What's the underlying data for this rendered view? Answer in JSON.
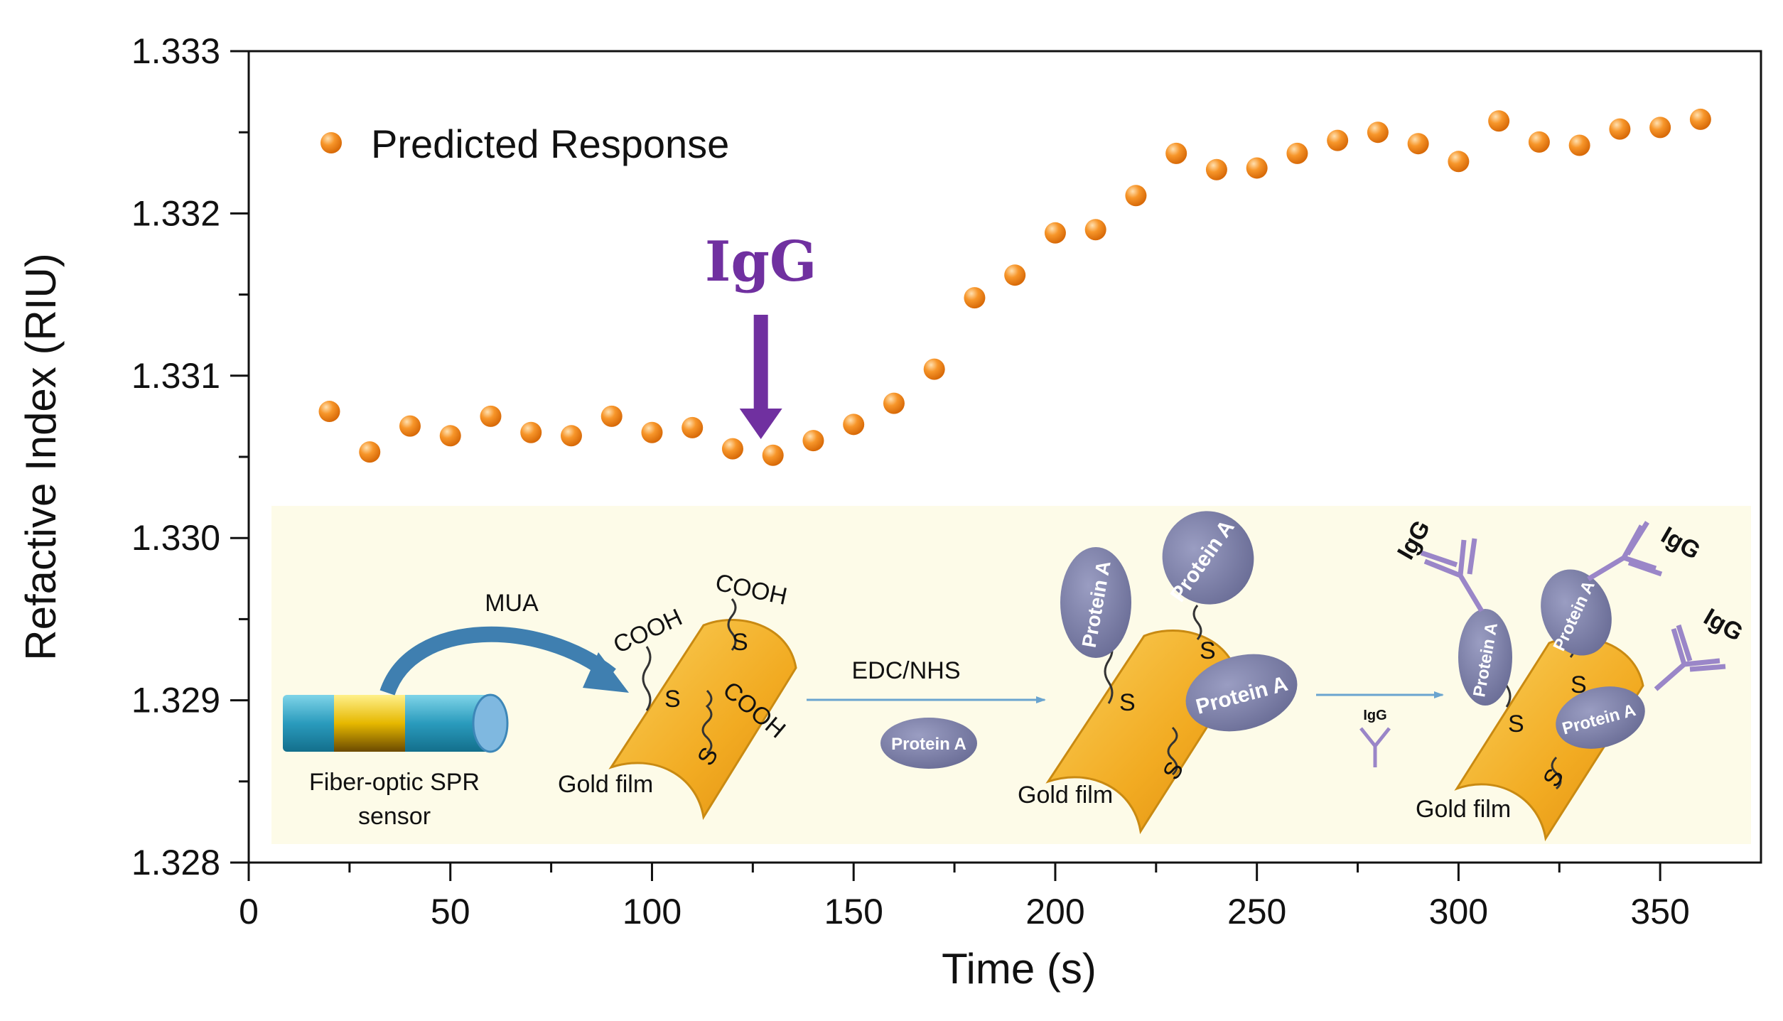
{
  "colors": {
    "marker": "#f28a1e",
    "marker_edge": "#d9700a",
    "annotation": "#7030a0",
    "schematic_bg": "#fdfbe8",
    "gold": "#f5b731",
    "protein": "#7c7fa6",
    "antibody": "#9a86c8"
  },
  "chart_data": {
    "type": "scatter",
    "title": "",
    "xlabel": "Time (s)",
    "ylabel": "Refactive Index (RIU)",
    "xlim": [
      0,
      375
    ],
    "ylim": [
      1.328,
      1.333
    ],
    "xticks": [
      0,
      50,
      100,
      150,
      200,
      250,
      300,
      350
    ],
    "xtick_labels": [
      "0",
      "50",
      "100",
      "150",
      "200",
      "250",
      "300",
      "350"
    ],
    "yticks": [
      1.328,
      1.329,
      1.33,
      1.331,
      1.332,
      1.333
    ],
    "ytick_labels": [
      "1.328",
      "1.329",
      "1.330",
      "1.331",
      "1.332",
      "1.333"
    ],
    "grid": false,
    "legend": {
      "position": "top-left",
      "entries": [
        "Predicted Response"
      ]
    },
    "series": [
      {
        "name": "Predicted Response",
        "x": [
          20,
          30,
          40,
          50,
          60,
          70,
          80,
          90,
          100,
          110,
          120,
          130,
          140,
          150,
          160,
          170,
          180,
          190,
          200,
          210,
          220,
          230,
          240,
          250,
          260,
          270,
          280,
          290,
          300,
          310,
          320,
          330,
          340,
          350,
          360
        ],
        "y": [
          1.33078,
          1.33053,
          1.33069,
          1.33063,
          1.33075,
          1.33065,
          1.33063,
          1.33075,
          1.33065,
          1.33068,
          1.33055,
          1.33051,
          1.3306,
          1.3307,
          1.33083,
          1.33104,
          1.33148,
          1.33162,
          1.33188,
          1.3319,
          1.33211,
          1.33237,
          1.33227,
          1.33228,
          1.33237,
          1.33245,
          1.3325,
          1.33243,
          1.33232,
          1.33257,
          1.33244,
          1.33242,
          1.33252,
          1.33253,
          1.33258
        ]
      }
    ],
    "annotations": [
      {
        "text": "IgG",
        "x": 127,
        "arrow": "down"
      }
    ]
  },
  "schematic": {
    "mua_label": "MUA",
    "fiber_label_line1": "Fiber-optic SPR",
    "fiber_label_line2": "sensor",
    "gold_film_label": "Gold film",
    "cooh_label": "COOH",
    "s_label": "S",
    "edc_label": "EDC/NHS",
    "protein_a_label": "Protein A",
    "igg_label": "IgG"
  }
}
